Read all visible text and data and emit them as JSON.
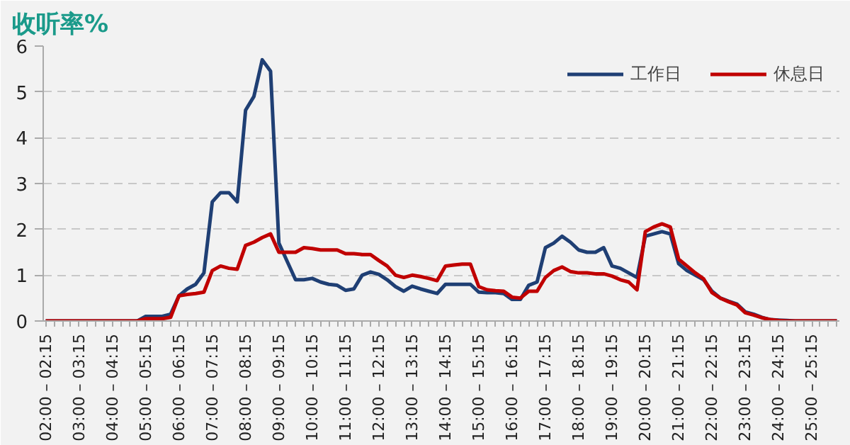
{
  "chart_data": {
    "type": "line",
    "title": "收听率%",
    "categories": [
      "02:00 – 02:15",
      null,
      null,
      null,
      "03:00 – 03:15",
      null,
      null,
      null,
      "04:00 – 04:15",
      null,
      null,
      null,
      "05:00 – 05:15",
      null,
      null,
      null,
      "06:00 – 06:15",
      null,
      null,
      null,
      "07:00 – 07:15",
      null,
      null,
      null,
      "08:00 – 08:15",
      null,
      null,
      null,
      "09:00 – 09:15",
      null,
      null,
      null,
      "10:00 – 10:15",
      null,
      null,
      null,
      "11:00 – 11:15",
      null,
      null,
      null,
      "12:00 – 12:15",
      null,
      null,
      null,
      "13:00 – 13:15",
      null,
      null,
      null,
      "14:00 – 14:15",
      null,
      null,
      null,
      "15:00 – 15:15",
      null,
      null,
      null,
      "16:00 – 16:15",
      null,
      null,
      null,
      "17:00 – 17:15",
      null,
      null,
      null,
      "18:00 – 18:15",
      null,
      null,
      null,
      "19:00 – 19:15",
      null,
      null,
      null,
      "20:00 – 20:15",
      null,
      null,
      null,
      "21:00 – 21:15",
      null,
      null,
      null,
      "22:00 – 22:15",
      null,
      null,
      null,
      "23:00 – 23:15",
      null,
      null,
      null,
      "24:00 – 24:15",
      null,
      null,
      null,
      "25:00 – 25:15",
      null,
      null,
      null
    ],
    "series": [
      {
        "name": "工作日",
        "color": "#1f3f74",
        "values": [
          0,
          0,
          0,
          0,
          0,
          0,
          0,
          0,
          0,
          0,
          0,
          0,
          0.1,
          0.1,
          0.1,
          0.15,
          0.55,
          0.7,
          0.8,
          1.05,
          2.6,
          2.8,
          2.8,
          2.6,
          4.6,
          4.9,
          5.7,
          5.45,
          1.7,
          1.3,
          0.9,
          0.9,
          0.93,
          0.85,
          0.8,
          0.78,
          0.67,
          0.7,
          1.0,
          1.07,
          1.02,
          0.9,
          0.75,
          0.65,
          0.76,
          0.7,
          0.65,
          0.6,
          0.8,
          0.8,
          0.8,
          0.8,
          0.63,
          0.62,
          0.62,
          0.6,
          0.47,
          0.47,
          0.78,
          0.85,
          1.6,
          1.7,
          1.85,
          1.72,
          1.55,
          1.5,
          1.5,
          1.6,
          1.2,
          1.15,
          1.05,
          0.95,
          1.85,
          1.9,
          1.95,
          1.9,
          1.25,
          1.1,
          1.0,
          0.9,
          0.65,
          0.5,
          0.43,
          0.37,
          0.2,
          0.15,
          0.08,
          0.03,
          0.02,
          0.01,
          0,
          0,
          0,
          0,
          0,
          0
        ]
      },
      {
        "name": "休息日",
        "color": "#c00000",
        "values": [
          0,
          0,
          0,
          0,
          0,
          0,
          0,
          0,
          0,
          0,
          0,
          0,
          0.05,
          0.05,
          0.05,
          0.08,
          0.55,
          0.58,
          0.6,
          0.63,
          1.1,
          1.2,
          1.15,
          1.13,
          1.65,
          1.72,
          1.82,
          1.9,
          1.5,
          1.5,
          1.5,
          1.6,
          1.58,
          1.55,
          1.55,
          1.55,
          1.47,
          1.47,
          1.45,
          1.45,
          1.32,
          1.2,
          1.0,
          0.95,
          1.0,
          0.97,
          0.93,
          0.88,
          1.2,
          1.22,
          1.24,
          1.24,
          0.75,
          0.68,
          0.66,
          0.65,
          0.52,
          0.5,
          0.65,
          0.65,
          0.95,
          1.1,
          1.18,
          1.08,
          1.05,
          1.05,
          1.03,
          1.03,
          0.98,
          0.9,
          0.85,
          0.68,
          1.95,
          2.05,
          2.12,
          2.05,
          1.35,
          1.2,
          1.05,
          0.92,
          0.62,
          0.5,
          0.42,
          0.35,
          0.18,
          0.13,
          0.07,
          0.03,
          0.01,
          0,
          0,
          0,
          0,
          0,
          0,
          0
        ]
      }
    ],
    "ylim": [
      0,
      6
    ],
    "yticks": [
      0,
      1,
      2,
      3,
      4,
      5,
      6
    ],
    "grid": "y",
    "legend": "top right",
    "marker": "none",
    "line_style": "solid"
  }
}
